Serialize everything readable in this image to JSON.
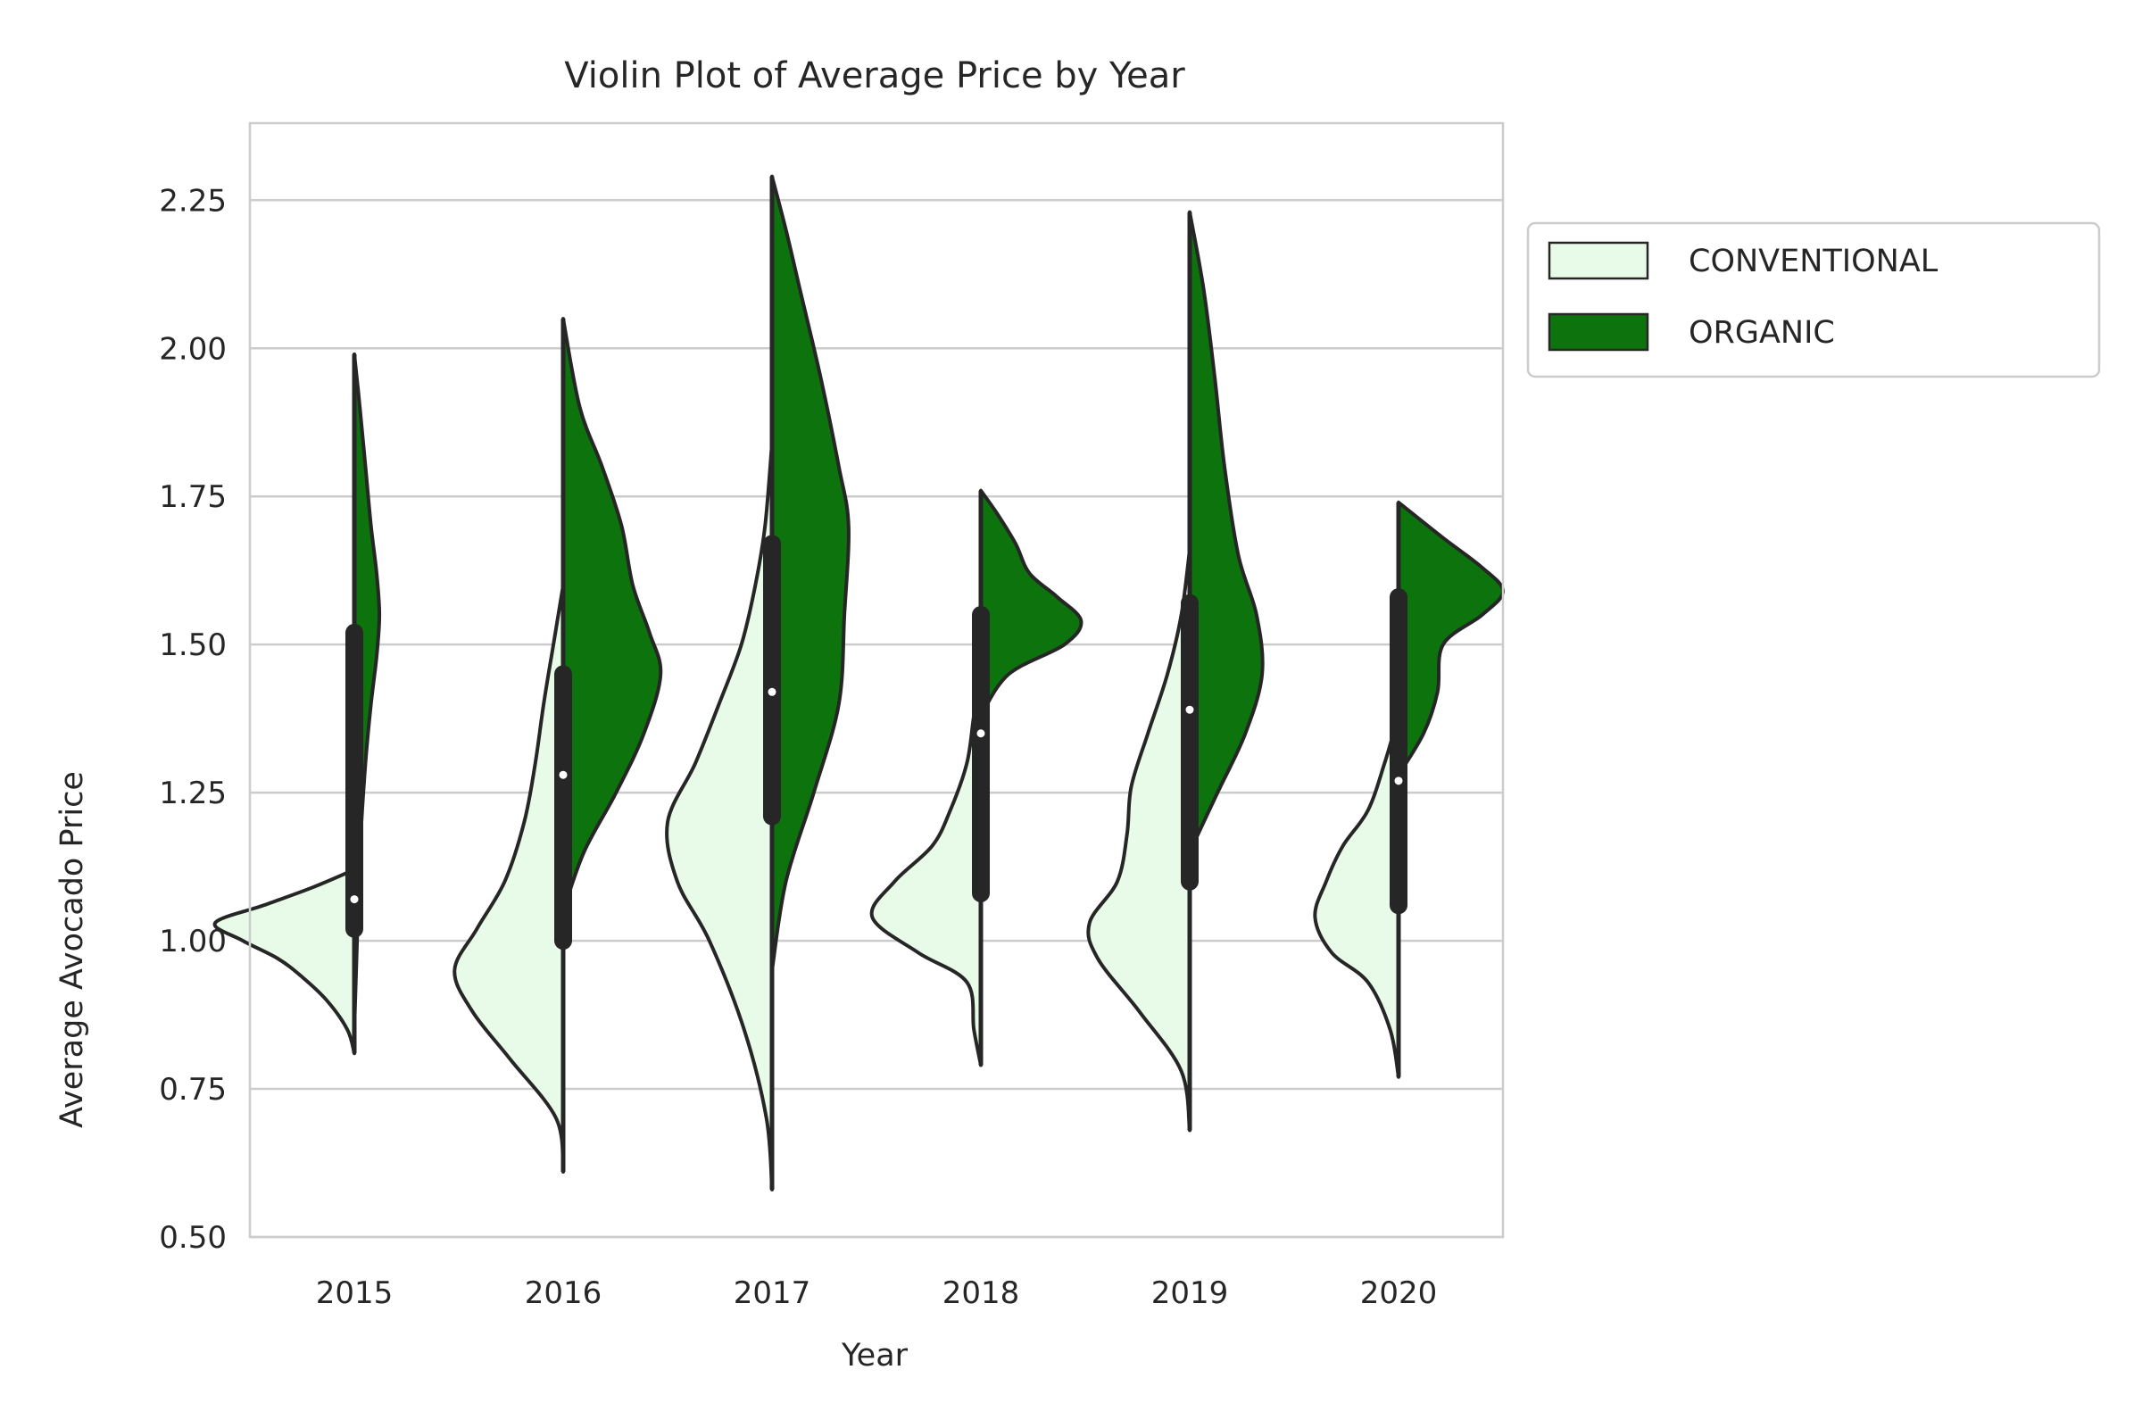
{
  "chart_data": {
    "type": "violin",
    "title": "Violin Plot of Average Price by Year",
    "xlabel": "Year",
    "ylabel": "Average Avocado Price",
    "categories": [
      "2015",
      "2016",
      "2017",
      "2018",
      "2019",
      "2020"
    ],
    "ylim": [
      0.5,
      2.38
    ],
    "yticks": [
      "0.50",
      "0.75",
      "1.00",
      "1.25",
      "1.50",
      "1.75",
      "2.00",
      "2.25"
    ],
    "grid": "y",
    "legend_position": "outside-upper-right",
    "colors": {
      "conventional": "#e8fbe8",
      "organic": "#0d730d",
      "edge": "#262626",
      "grid": "#cccccc"
    },
    "series": [
      {
        "name": "CONVENTIONAL",
        "side": "left",
        "color": "#e8fbe8",
        "violins": [
          {
            "year": "2015",
            "min": 0.81,
            "max": 1.12,
            "density": [
              [
                0.81,
                0.0
              ],
              [
                0.85,
                0.05
              ],
              [
                0.9,
                0.2
              ],
              [
                0.94,
                0.38
              ],
              [
                0.97,
                0.55
              ],
              [
                1.0,
                0.8
              ],
              [
                1.03,
                1.0
              ],
              [
                1.06,
                0.65
              ],
              [
                1.09,
                0.3
              ],
              [
                1.12,
                0.0
              ]
            ]
          },
          {
            "year": "2016",
            "min": 0.61,
            "max": 1.6,
            "density": [
              [
                0.61,
                0.0
              ],
              [
                0.7,
                0.05
              ],
              [
                0.8,
                0.38
              ],
              [
                0.88,
                0.65
              ],
              [
                0.95,
                0.78
              ],
              [
                1.02,
                0.62
              ],
              [
                1.1,
                0.42
              ],
              [
                1.2,
                0.28
              ],
              [
                1.3,
                0.2
              ],
              [
                1.4,
                0.14
              ],
              [
                1.5,
                0.07
              ],
              [
                1.6,
                0.0
              ]
            ]
          },
          {
            "year": "2017",
            "min": 0.58,
            "max": 1.84,
            "density": [
              [
                0.58,
                0.0
              ],
              [
                0.7,
                0.04
              ],
              [
                0.85,
                0.2
              ],
              [
                1.0,
                0.45
              ],
              [
                1.1,
                0.68
              ],
              [
                1.2,
                0.75
              ],
              [
                1.3,
                0.55
              ],
              [
                1.4,
                0.38
              ],
              [
                1.5,
                0.22
              ],
              [
                1.6,
                0.12
              ],
              [
                1.7,
                0.05
              ],
              [
                1.84,
                0.0
              ]
            ]
          },
          {
            "year": "2018",
            "min": 0.79,
            "max": 1.45,
            "density": [
              [
                0.79,
                0.0
              ],
              [
                0.85,
                0.05
              ],
              [
                0.93,
                0.1
              ],
              [
                0.98,
                0.45
              ],
              [
                1.04,
                0.78
              ],
              [
                1.1,
                0.62
              ],
              [
                1.16,
                0.35
              ],
              [
                1.22,
                0.22
              ],
              [
                1.3,
                0.1
              ],
              [
                1.38,
                0.05
              ],
              [
                1.45,
                0.0
              ]
            ]
          },
          {
            "year": "2019",
            "min": 0.68,
            "max": 1.66,
            "density": [
              [
                0.68,
                0.0
              ],
              [
                0.78,
                0.06
              ],
              [
                0.88,
                0.36
              ],
              [
                0.97,
                0.66
              ],
              [
                1.03,
                0.72
              ],
              [
                1.1,
                0.52
              ],
              [
                1.18,
                0.45
              ],
              [
                1.26,
                0.42
              ],
              [
                1.35,
                0.3
              ],
              [
                1.45,
                0.16
              ],
              [
                1.55,
                0.06
              ],
              [
                1.66,
                0.0
              ]
            ]
          },
          {
            "year": "2020",
            "min": 0.77,
            "max": 1.38,
            "density": [
              [
                0.77,
                0.0
              ],
              [
                0.85,
                0.06
              ],
              [
                0.93,
                0.22
              ],
              [
                0.98,
                0.48
              ],
              [
                1.04,
                0.6
              ],
              [
                1.1,
                0.52
              ],
              [
                1.16,
                0.4
              ],
              [
                1.22,
                0.22
              ],
              [
                1.3,
                0.1
              ],
              [
                1.38,
                0.0
              ]
            ]
          }
        ]
      },
      {
        "name": "ORGANIC",
        "side": "right",
        "color": "#0d730d",
        "violins": [
          {
            "year": "2015",
            "min": 0.85,
            "max": 1.99,
            "density": [
              [
                0.85,
                0.0
              ],
              [
                1.0,
                0.02
              ],
              [
                1.15,
                0.04
              ],
              [
                1.3,
                0.08
              ],
              [
                1.4,
                0.12
              ],
              [
                1.48,
                0.16
              ],
              [
                1.55,
                0.18
              ],
              [
                1.62,
                0.16
              ],
              [
                1.7,
                0.12
              ],
              [
                1.8,
                0.08
              ],
              [
                1.9,
                0.04
              ],
              [
                1.99,
                0.0
              ]
            ]
          },
          {
            "year": "2016",
            "min": 1.05,
            "max": 2.05,
            "density": [
              [
                1.05,
                0.0
              ],
              [
                1.15,
                0.15
              ],
              [
                1.25,
                0.38
              ],
              [
                1.35,
                0.58
              ],
              [
                1.45,
                0.7
              ],
              [
                1.52,
                0.62
              ],
              [
                1.6,
                0.5
              ],
              [
                1.7,
                0.42
              ],
              [
                1.8,
                0.28
              ],
              [
                1.9,
                0.12
              ],
              [
                2.05,
                0.0
              ]
            ]
          },
          {
            "year": "2017",
            "min": 0.95,
            "max": 2.29,
            "density": [
              [
                0.95,
                0.0
              ],
              [
                1.1,
                0.1
              ],
              [
                1.25,
                0.3
              ],
              [
                1.4,
                0.48
              ],
              [
                1.55,
                0.52
              ],
              [
                1.7,
                0.55
              ],
              [
                1.8,
                0.48
              ],
              [
                1.95,
                0.35
              ],
              [
                2.1,
                0.2
              ],
              [
                2.2,
                0.1
              ],
              [
                2.29,
                0.0
              ]
            ]
          },
          {
            "year": "2018",
            "min": 1.38,
            "max": 1.76,
            "density": [
              [
                1.38,
                0.0
              ],
              [
                1.45,
                0.2
              ],
              [
                1.5,
                0.6
              ],
              [
                1.54,
                0.72
              ],
              [
                1.58,
                0.55
              ],
              [
                1.62,
                0.35
              ],
              [
                1.67,
                0.25
              ],
              [
                1.72,
                0.12
              ],
              [
                1.76,
                0.0
              ]
            ]
          },
          {
            "year": "2019",
            "min": 1.15,
            "max": 2.23,
            "density": [
              [
                1.15,
                0.0
              ],
              [
                1.25,
                0.2
              ],
              [
                1.35,
                0.4
              ],
              [
                1.45,
                0.52
              ],
              [
                1.55,
                0.48
              ],
              [
                1.65,
                0.35
              ],
              [
                1.8,
                0.25
              ],
              [
                1.95,
                0.18
              ],
              [
                2.1,
                0.1
              ],
              [
                2.23,
                0.0
              ]
            ]
          },
          {
            "year": "2020",
            "min": 1.28,
            "max": 1.74,
            "density": [
              [
                1.28,
                0.0
              ],
              [
                1.35,
                0.18
              ],
              [
                1.42,
                0.28
              ],
              [
                1.5,
                0.32
              ],
              [
                1.55,
                0.6
              ],
              [
                1.59,
                0.75
              ],
              [
                1.63,
                0.6
              ],
              [
                1.68,
                0.32
              ],
              [
                1.74,
                0.0
              ]
            ]
          }
        ]
      }
    ],
    "boxes": [
      {
        "year": "2015",
        "q1": 1.02,
        "median": 1.07,
        "q3": 1.52
      },
      {
        "year": "2016",
        "q1": 1.0,
        "median": 1.28,
        "q3": 1.45
      },
      {
        "year": "2017",
        "q1": 1.21,
        "median": 1.42,
        "q3": 1.67
      },
      {
        "year": "2018",
        "q1": 1.08,
        "median": 1.35,
        "q3": 1.55
      },
      {
        "year": "2019",
        "q1": 1.1,
        "median": 1.39,
        "q3": 1.57
      },
      {
        "year": "2020",
        "q1": 1.06,
        "median": 1.27,
        "q3": 1.58
      }
    ]
  }
}
